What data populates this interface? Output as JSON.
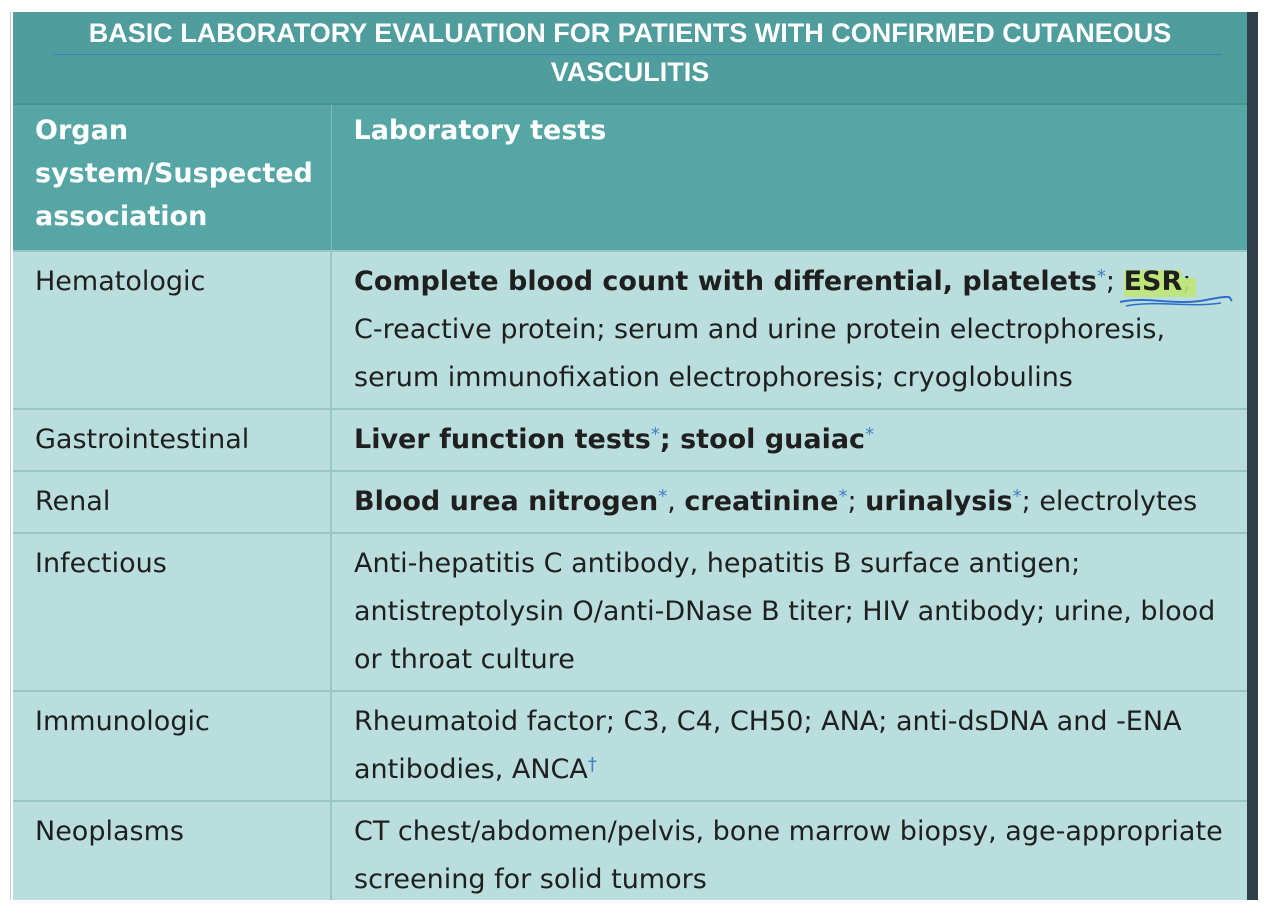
{
  "title": {
    "line1": "BASIC LABORATORY EVALUATION FOR PATIENTS WITH CONFIRMED CUTANEOUS",
    "line2": "VASCULITIS"
  },
  "headers": {
    "col1": "Organ system/Suspected association",
    "col2": "Laboratory tests"
  },
  "rows": {
    "hematologic": {
      "organ": "Hematologic",
      "bold1": "Complete blood count with differential, platelets",
      "ast": "*",
      "sep1": "; ",
      "esr": "ESR",
      "rest": "; C-reactive protein; serum and urine protein electrophoresis, serum immunofixation electrophoresis; cryoglobulins"
    },
    "gastrointestinal": {
      "organ": "Gastrointestinal",
      "bold1": "Liver function tests",
      "ast1": "*",
      "bold2": "; stool guaiac",
      "ast2": "*"
    },
    "renal": {
      "organ": "Renal",
      "bold1": "Blood urea nitrogen",
      "ast1": "*",
      "sep1": ", ",
      "bold2": "creatinine",
      "ast2": "*",
      "sep2": "; ",
      "bold3": "urinalysis",
      "ast3": "*",
      "rest": "; electrolytes"
    },
    "infectious": {
      "organ": "Infectious",
      "text": "Anti-hepatitis C antibody, hepatitis B surface antigen; antistreptolysin O/anti-DNase B titer; HIV antibody; urine, blood or throat culture"
    },
    "immunologic": {
      "organ": "Immunologic",
      "text": "Rheumatoid factor; C3, C4, CH50; ANA; anti-dsDNA and -ENA antibodies, ANCA",
      "dagger": "†"
    },
    "neoplasms": {
      "organ": "Neoplasms",
      "text": "CT chest/abdomen/pelvis, bone marrow biopsy, age-appropriate screening for solid tumors"
    }
  },
  "colors": {
    "title_bg": "#4f9d9c",
    "header_bg": "#56a6a5",
    "body_bg": "#b9dedd",
    "footnote_mark": "#3f7fc8",
    "highlight": "#bee678"
  }
}
